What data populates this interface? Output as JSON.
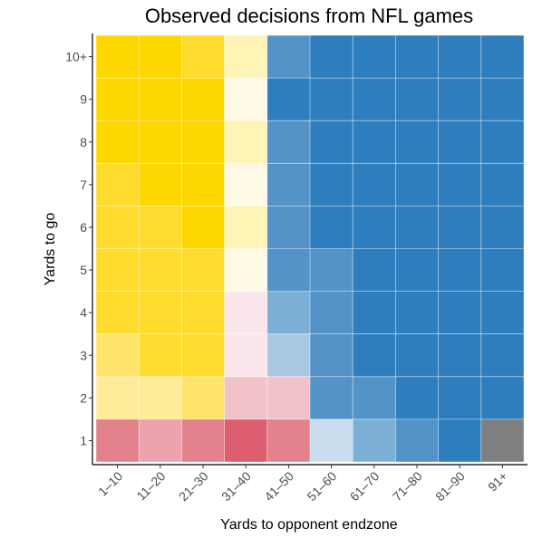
{
  "chart_data": {
    "type": "heatmap",
    "title": "Observed decisions from NFL games",
    "xlabel": "Yards to opponent endzone",
    "ylabel": "Yards to go",
    "x_categories": [
      "1–10",
      "11–20",
      "21–30",
      "31–40",
      "41–50",
      "51–60",
      "61–70",
      "71–80",
      "81–90",
      "91+"
    ],
    "y_categories": [
      "1",
      "2",
      "3",
      "4",
      "5",
      "6",
      "7",
      "8",
      "9",
      "10+"
    ],
    "legend": "none",
    "grid": true,
    "colors": {
      "gold_strong": "#FFD700",
      "gold_mid": "#FFDB2E",
      "gold_light": "#FFE36A",
      "gold_pale": "#FFEC9A",
      "cream": "#FFF3B5",
      "cream_pale": "#FFFAE6",
      "blue_strong": "#2E7EBE",
      "blue_mid": "#5393C8",
      "blue_light": "#7BAFD6",
      "blue_pale": "#A9C9E3",
      "blue_faint": "#C9DDEE",
      "pink_pale": "#FBE7EB",
      "pink_light": "#F2C2CB",
      "pink_mid": "#ECA3AD",
      "red_mid": "#E3818D",
      "red_strong": "#DD5E6E",
      "missing": "#7F7F7F"
    },
    "cells": [
      [
        "red_mid",
        "pink_mid",
        "red_mid",
        "red_strong",
        "red_mid",
        "blue_faint",
        "blue_light",
        "blue_mid",
        "blue_strong",
        "missing"
      ],
      [
        "gold_pale",
        "gold_pale",
        "gold_light",
        "pink_light",
        "pink_light",
        "blue_mid",
        "blue_mid",
        "blue_strong",
        "blue_strong",
        "blue_strong"
      ],
      [
        "gold_light",
        "gold_mid",
        "gold_mid",
        "pink_pale",
        "blue_pale",
        "blue_mid",
        "blue_strong",
        "blue_strong",
        "blue_strong",
        "blue_strong"
      ],
      [
        "gold_mid",
        "gold_mid",
        "gold_mid",
        "pink_pale",
        "blue_light",
        "blue_mid",
        "blue_strong",
        "blue_strong",
        "blue_strong",
        "blue_strong"
      ],
      [
        "gold_mid",
        "gold_mid",
        "gold_mid",
        "cream_pale",
        "blue_mid",
        "blue_mid",
        "blue_strong",
        "blue_strong",
        "blue_strong",
        "blue_strong"
      ],
      [
        "gold_mid",
        "gold_mid",
        "gold_strong",
        "cream",
        "blue_mid",
        "blue_strong",
        "blue_strong",
        "blue_strong",
        "blue_strong",
        "blue_strong"
      ],
      [
        "gold_mid",
        "gold_strong",
        "gold_strong",
        "cream_pale",
        "blue_mid",
        "blue_strong",
        "blue_strong",
        "blue_strong",
        "blue_strong",
        "blue_strong"
      ],
      [
        "gold_strong",
        "gold_strong",
        "gold_strong",
        "cream",
        "blue_mid",
        "blue_strong",
        "blue_strong",
        "blue_strong",
        "blue_strong",
        "blue_strong"
      ],
      [
        "gold_strong",
        "gold_strong",
        "gold_strong",
        "cream_pale",
        "blue_strong",
        "blue_strong",
        "blue_strong",
        "blue_strong",
        "blue_strong",
        "blue_strong"
      ],
      [
        "gold_strong",
        "gold_strong",
        "gold_mid",
        "cream",
        "blue_mid",
        "blue_strong",
        "blue_strong",
        "blue_strong",
        "blue_strong",
        "blue_strong"
      ]
    ]
  }
}
